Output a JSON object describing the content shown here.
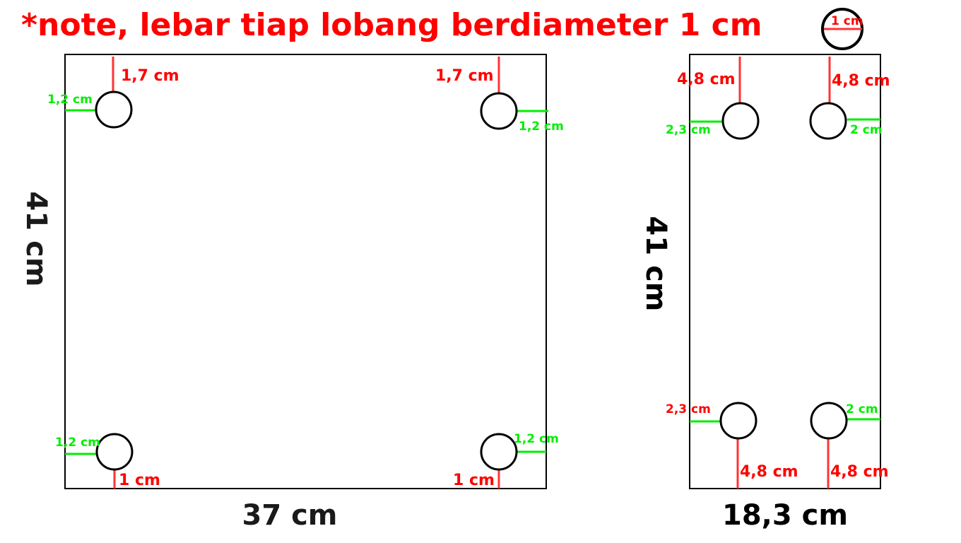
{
  "colors": {
    "red": "#ff0000",
    "line_red": "#ff3333",
    "green": "#00ee00",
    "black": "#000000",
    "dim_text": "#1a1a1a"
  },
  "note": {
    "text": "*note, lebar tiap lobang berdiameter 1 cm",
    "legend_label": "1 cm"
  },
  "panel_left": {
    "width_label": "37 cm",
    "height_label": "41 cm",
    "top_left": {
      "top_label": "1,7 cm",
      "side_label": "1,2 cm"
    },
    "top_right": {
      "top_label": "1,7 cm",
      "side_label": "1,2 cm"
    },
    "bottom_left": {
      "side_label": "1,2 cm",
      "bottom_label": "1 cm"
    },
    "bottom_right": {
      "side_label": "1,2 cm",
      "bottom_label": "1 cm"
    }
  },
  "panel_right": {
    "width_label": "18,3 cm",
    "height_label": "41 cm",
    "top_left": {
      "top_label": "4,8 cm",
      "side_label": "2,3 cm"
    },
    "top_right": {
      "top_label": "4,8 cm",
      "side_label": "2 cm"
    },
    "bottom_left": {
      "side_label": "2,3 cm",
      "bottom_label": "4,8 cm"
    },
    "bottom_right": {
      "side_label": "2 cm",
      "bottom_label": "4,8 cm"
    }
  }
}
